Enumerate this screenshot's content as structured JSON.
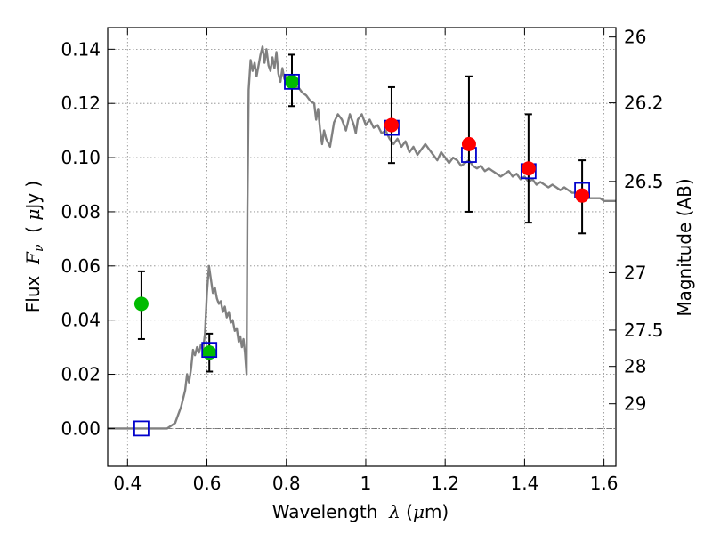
{
  "chart_data": {
    "type": "scatter",
    "xlabel": {
      "prefix": "Wavelength  ",
      "symbol": "λ",
      "suffix": " (",
      "mu": "μ",
      "unit": "m)"
    },
    "ylabel": {
      "prefix": "Flux  ",
      "symbol": "F",
      "sub": "ν",
      "open": "  ( ",
      "mu": "μ",
      "unit": "Jy )"
    },
    "y2label": "Magnitude (AB)",
    "xlim": [
      0.35,
      1.63
    ],
    "ylim": [
      -0.014,
      0.148
    ],
    "x_ticks": [
      0.4,
      0.6,
      0.8,
      1.0,
      1.2,
      1.4,
      1.6
    ],
    "x_tick_labels": [
      "0.4",
      "0.6",
      "0.8",
      "1",
      "1.2",
      "1.4",
      "1.6"
    ],
    "y_ticks": [
      0.0,
      0.02,
      0.04,
      0.06,
      0.08,
      0.1,
      0.12,
      0.14
    ],
    "y_tick_labels": [
      "0.00",
      "0.02",
      "0.04",
      "0.06",
      "0.08",
      "0.10",
      "0.12",
      "0.14"
    ],
    "y2_ticks": [
      {
        "label": "26",
        "flux": 0.1445
      },
      {
        "label": "26.2",
        "flux": 0.1202
      },
      {
        "label": "26.5",
        "flux": 0.0912
      },
      {
        "label": "27",
        "flux": 0.0575
      },
      {
        "label": "27.5",
        "flux": 0.0363
      },
      {
        "label": "28",
        "flux": 0.0229
      },
      {
        "label": "29",
        "flux": 0.0091
      }
    ],
    "grid": true,
    "colors": {
      "model": "#808080",
      "errorbar": "#000000",
      "green": "#00bb00",
      "red": "#ff0000",
      "square": "#0000cc",
      "grid": "#888888",
      "zero_line": "#555555"
    },
    "series": [
      {
        "kind": "model_spectrum",
        "points": [
          [
            0.35,
            0.0
          ],
          [
            0.5,
            0.0
          ],
          [
            0.52,
            0.002
          ],
          [
            0.535,
            0.008
          ],
          [
            0.545,
            0.014
          ],
          [
            0.55,
            0.02
          ],
          [
            0.555,
            0.017
          ],
          [
            0.56,
            0.022
          ],
          [
            0.565,
            0.029
          ],
          [
            0.57,
            0.027
          ],
          [
            0.575,
            0.03
          ],
          [
            0.58,
            0.028
          ],
          [
            0.585,
            0.031
          ],
          [
            0.59,
            0.029
          ],
          [
            0.595,
            0.035
          ],
          [
            0.6,
            0.05
          ],
          [
            0.605,
            0.06
          ],
          [
            0.61,
            0.055
          ],
          [
            0.615,
            0.05
          ],
          [
            0.62,
            0.052
          ],
          [
            0.625,
            0.048
          ],
          [
            0.63,
            0.046
          ],
          [
            0.635,
            0.047
          ],
          [
            0.64,
            0.043
          ],
          [
            0.645,
            0.045
          ],
          [
            0.65,
            0.041
          ],
          [
            0.655,
            0.043
          ],
          [
            0.66,
            0.039
          ],
          [
            0.665,
            0.04
          ],
          [
            0.67,
            0.036
          ],
          [
            0.675,
            0.037
          ],
          [
            0.68,
            0.032
          ],
          [
            0.684,
            0.034
          ],
          [
            0.688,
            0.03
          ],
          [
            0.692,
            0.033
          ],
          [
            0.696,
            0.028
          ],
          [
            0.7,
            0.02
          ],
          [
            0.702,
            0.08
          ],
          [
            0.705,
            0.125
          ],
          [
            0.71,
            0.136
          ],
          [
            0.715,
            0.132
          ],
          [
            0.72,
            0.135
          ],
          [
            0.725,
            0.13
          ],
          [
            0.73,
            0.134
          ],
          [
            0.735,
            0.138
          ],
          [
            0.74,
            0.141
          ],
          [
            0.745,
            0.135
          ],
          [
            0.75,
            0.14
          ],
          [
            0.755,
            0.134
          ],
          [
            0.76,
            0.132
          ],
          [
            0.765,
            0.137
          ],
          [
            0.77,
            0.133
          ],
          [
            0.775,
            0.139
          ],
          [
            0.78,
            0.131
          ],
          [
            0.785,
            0.128
          ],
          [
            0.79,
            0.133
          ],
          [
            0.795,
            0.129
          ],
          [
            0.8,
            0.13
          ],
          [
            0.81,
            0.128
          ],
          [
            0.82,
            0.126
          ],
          [
            0.83,
            0.126
          ],
          [
            0.84,
            0.124
          ],
          [
            0.85,
            0.123
          ],
          [
            0.86,
            0.121
          ],
          [
            0.87,
            0.12
          ],
          [
            0.875,
            0.114
          ],
          [
            0.88,
            0.118
          ],
          [
            0.885,
            0.11
          ],
          [
            0.89,
            0.105
          ],
          [
            0.895,
            0.11
          ],
          [
            0.9,
            0.107
          ],
          [
            0.91,
            0.104
          ],
          [
            0.92,
            0.113
          ],
          [
            0.93,
            0.116
          ],
          [
            0.94,
            0.114
          ],
          [
            0.95,
            0.11
          ],
          [
            0.96,
            0.116
          ],
          [
            0.97,
            0.112
          ],
          [
            0.975,
            0.109
          ],
          [
            0.98,
            0.114
          ],
          [
            0.99,
            0.116
          ],
          [
            1.0,
            0.112
          ],
          [
            1.01,
            0.114
          ],
          [
            1.02,
            0.111
          ],
          [
            1.03,
            0.112
          ],
          [
            1.04,
            0.109
          ],
          [
            1.05,
            0.11
          ],
          [
            1.06,
            0.107
          ],
          [
            1.07,
            0.105
          ],
          [
            1.08,
            0.107
          ],
          [
            1.09,
            0.104
          ],
          [
            1.1,
            0.106
          ],
          [
            1.11,
            0.102
          ],
          [
            1.12,
            0.104
          ],
          [
            1.13,
            0.101
          ],
          [
            1.14,
            0.103
          ],
          [
            1.15,
            0.105
          ],
          [
            1.16,
            0.103
          ],
          [
            1.17,
            0.101
          ],
          [
            1.18,
            0.099
          ],
          [
            1.19,
            0.102
          ],
          [
            1.2,
            0.1
          ],
          [
            1.21,
            0.098
          ],
          [
            1.22,
            0.1
          ],
          [
            1.23,
            0.099
          ],
          [
            1.24,
            0.097
          ],
          [
            1.25,
            0.098
          ],
          [
            1.26,
            0.099
          ],
          [
            1.27,
            0.097
          ],
          [
            1.28,
            0.096
          ],
          [
            1.29,
            0.097
          ],
          [
            1.3,
            0.095
          ],
          [
            1.31,
            0.096
          ],
          [
            1.32,
            0.095
          ],
          [
            1.33,
            0.094
          ],
          [
            1.34,
            0.093
          ],
          [
            1.35,
            0.094
          ],
          [
            1.36,
            0.095
          ],
          [
            1.37,
            0.093
          ],
          [
            1.38,
            0.094
          ],
          [
            1.39,
            0.092
          ],
          [
            1.4,
            0.093
          ],
          [
            1.41,
            0.091
          ],
          [
            1.42,
            0.092
          ],
          [
            1.43,
            0.09
          ],
          [
            1.44,
            0.091
          ],
          [
            1.45,
            0.09
          ],
          [
            1.46,
            0.089
          ],
          [
            1.47,
            0.09
          ],
          [
            1.48,
            0.089
          ],
          [
            1.49,
            0.088
          ],
          [
            1.5,
            0.089
          ],
          [
            1.51,
            0.088
          ],
          [
            1.52,
            0.087
          ],
          [
            1.53,
            0.087
          ],
          [
            1.54,
            0.087
          ],
          [
            1.55,
            0.086
          ],
          [
            1.56,
            0.085
          ],
          [
            1.57,
            0.085
          ],
          [
            1.58,
            0.085
          ],
          [
            1.59,
            0.085
          ],
          [
            1.6,
            0.084
          ],
          [
            1.61,
            0.084
          ],
          [
            1.63,
            0.084
          ]
        ]
      },
      {
        "kind": "model_band_flux",
        "marker": "open_square",
        "points": [
          {
            "x": 0.435,
            "y": 0.0
          },
          {
            "x": 0.606,
            "y": 0.029
          },
          {
            "x": 0.814,
            "y": 0.128
          },
          {
            "x": 1.065,
            "y": 0.111
          },
          {
            "x": 1.26,
            "y": 0.101
          },
          {
            "x": 1.41,
            "y": 0.095
          },
          {
            "x": 1.545,
            "y": 0.088
          }
        ]
      },
      {
        "kind": "observed_green",
        "marker": "filled_circle",
        "points": [
          {
            "x": 0.435,
            "y": 0.046,
            "ylo": 0.033,
            "yhi": 0.058
          },
          {
            "x": 0.606,
            "y": 0.028,
            "ylo": 0.021,
            "yhi": 0.035
          },
          {
            "x": 0.814,
            "y": 0.128,
            "ylo": 0.119,
            "yhi": 0.138
          }
        ]
      },
      {
        "kind": "observed_red",
        "marker": "filled_circle",
        "points": [
          {
            "x": 1.065,
            "y": 0.112,
            "ylo": 0.098,
            "yhi": 0.126
          },
          {
            "x": 1.26,
            "y": 0.105,
            "ylo": 0.08,
            "yhi": 0.13
          },
          {
            "x": 1.41,
            "y": 0.096,
            "ylo": 0.076,
            "yhi": 0.116
          },
          {
            "x": 1.545,
            "y": 0.086,
            "ylo": 0.072,
            "yhi": 0.099
          }
        ]
      }
    ]
  }
}
